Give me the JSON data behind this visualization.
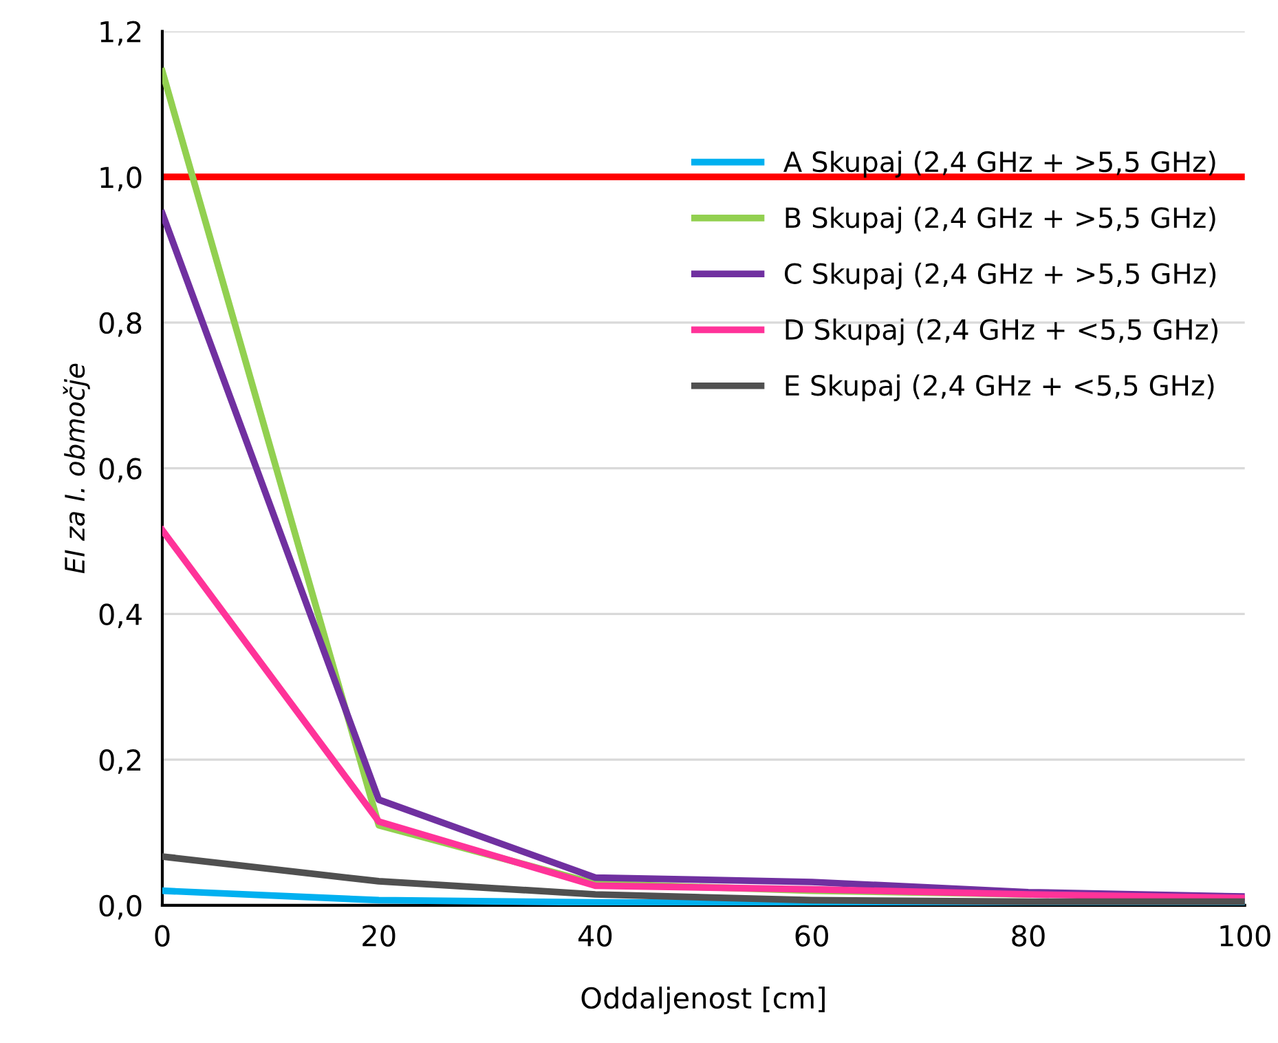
{
  "chart_data": {
    "type": "line",
    "xlabel": "Oddaljenost [cm]",
    "ylabel": "EI za I. območje",
    "x": [
      0,
      20,
      40,
      60,
      80,
      100
    ],
    "series": [
      {
        "name": "A Skupaj (2,4 GHz + >5,5 GHz)",
        "color": "#00b0f0",
        "values": [
          0.02,
          0.007,
          0.004,
          0.003,
          0.003,
          0.003
        ]
      },
      {
        "name": "B Skupaj (2,4 GHz + >5,5 GHz)",
        "color": "#92d050",
        "values": [
          1.145,
          0.11,
          0.03,
          0.02,
          0.015,
          null
        ]
      },
      {
        "name": "C Skupaj (2,4 GHz + >5,5 GHz)",
        "color": "#7030a0",
        "values": [
          0.95,
          0.145,
          0.038,
          0.032,
          0.018,
          0.012
        ]
      },
      {
        "name": "D Skupaj (2,4 GHz + <5,5 GHz)",
        "color": "#ff3399",
        "values": [
          0.515,
          0.115,
          0.027,
          0.022,
          0.015,
          0.01
        ]
      },
      {
        "name": "E Skupaj (2,4 GHz + <5,5 GHz)",
        "color": "#505050",
        "values": [
          0.067,
          0.033,
          0.015,
          0.007,
          0.005,
          0.005
        ]
      }
    ],
    "ref_lines": [
      {
        "axis": "y",
        "value": 1.0,
        "color": "#ff0000"
      }
    ],
    "xlim": [
      0,
      100
    ],
    "xticks": [
      0,
      20,
      40,
      60,
      80,
      100
    ],
    "ylim": [
      0,
      1.2
    ],
    "yticks": [
      {
        "value": 0,
        "label": "0,0"
      },
      {
        "value": 0.2,
        "label": "0,2"
      },
      {
        "value": 0.4,
        "label": "0,4"
      },
      {
        "value": 0.6,
        "label": "0,6"
      },
      {
        "value": 0.8,
        "label": "0,8"
      },
      {
        "value": 1.0,
        "label": "1,0"
      },
      {
        "value": 1.2,
        "label": "1,2"
      }
    ],
    "grid": "y",
    "legend": "right",
    "marker": "none",
    "line_style": "solid"
  }
}
